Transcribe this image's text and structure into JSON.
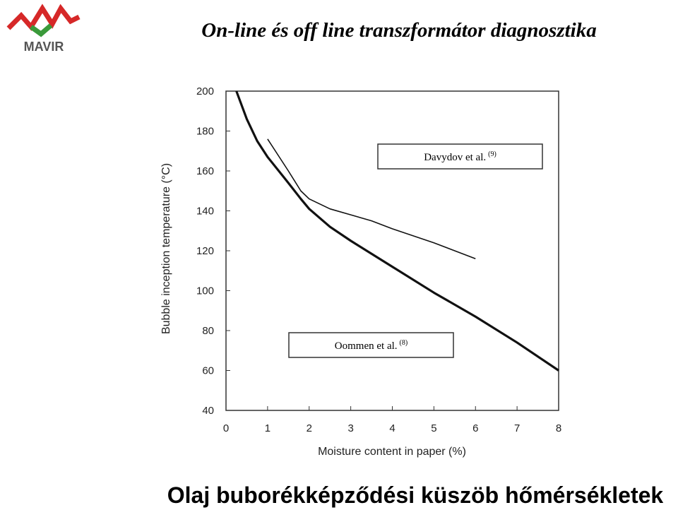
{
  "logo": {
    "text": "MAVIR"
  },
  "slide_title": "On-line és off line transzformátor diagnosztika",
  "caption": "Olaj buborékképződési küszöb hőmérsékletek",
  "chart_data": {
    "type": "line",
    "x_label": "Moisture content in paper (%)",
    "y_label": "Bubble inception temperature (°C)",
    "xlim": [
      0,
      8
    ],
    "xticks": [
      0,
      1,
      2,
      3,
      4,
      5,
      6,
      7,
      8
    ],
    "ylim": [
      40,
      200
    ],
    "yticks": [
      40,
      60,
      80,
      100,
      120,
      140,
      160,
      180,
      200
    ],
    "series": [
      {
        "name": "Davydov et al.",
        "ref": "(9)",
        "color": "#111111",
        "x": [
          1,
          1.5,
          1.8,
          2,
          2.5,
          3,
          3.5,
          4,
          5,
          5.5,
          6
        ],
        "values": [
          176,
          160,
          150,
          146,
          141,
          138,
          135,
          131,
          124,
          120,
          116
        ]
      },
      {
        "name": "Oommen et al.",
        "ref": "(8)",
        "color": "#111111",
        "x": [
          0.25,
          0.5,
          0.75,
          1,
          1.5,
          1.8,
          2,
          2.5,
          3,
          4,
          5,
          6,
          7,
          8
        ],
        "values": [
          200,
          186,
          175,
          167,
          154,
          146,
          141,
          132,
          125,
          112,
          99,
          87,
          74,
          60
        ]
      }
    ]
  }
}
